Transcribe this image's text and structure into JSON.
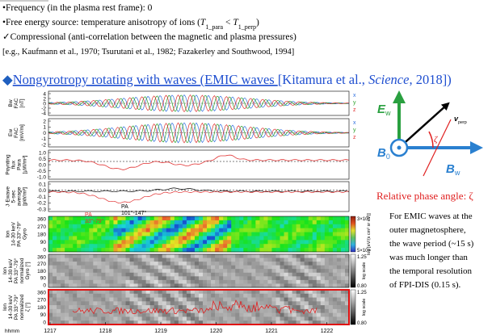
{
  "bullets": [
    {
      "parts": [
        "•Frequency (in the plasma rest frame): 0"
      ]
    },
    {
      "parts": [
        "•Free energy source: temperature anisotropy of ions (",
        "T",
        "1_para",
        " < ",
        "T",
        "1_perp",
        ")"
      ]
    },
    {
      "parts": [
        "✓Compressional (anti-correlation between the magnetic and plasma pressures)"
      ]
    }
  ],
  "reference": "[e.g., Kaufmann et al., 1970; Tsurutani et al., 1982; Fazakerley and Southwood, 1994]",
  "heading": {
    "marker": "◆",
    "text": "Nongyrotropy rotating with waves (EMIC waves ",
    "citation_pre": "[Kitamura et al., ",
    "journal": "Science",
    "citation_post": ", 2018])"
  },
  "figure": {
    "panels": [
      {
        "label": [
          "Bw",
          "FAC",
          "[nT]"
        ],
        "ticks": [
          "4",
          "2",
          "0",
          "-2",
          "-4"
        ]
      },
      {
        "label": [
          "Ew",
          "FAC",
          "[mV/m]"
        ],
        "ticks": [
          "2",
          "1",
          "0",
          "-1",
          "-2"
        ]
      },
      {
        "label": [
          "Poynting",
          "flux",
          "Para",
          "[µW/m²]"
        ],
        "ticks": [
          "1.0",
          "0.5",
          "0.0",
          "-0.5",
          "-1.0"
        ]
      },
      {
        "label": [
          "J·Ewave",
          "5-sec",
          "average",
          "[pW/m³]"
        ],
        "ticks": [
          "0.1",
          "0.0",
          "-0.1",
          "-0.2",
          "-0.3"
        ]
      },
      {
        "label": [
          "Ion",
          "14-30 keV",
          "PA 33°-79°",
          "Gyro"
        ],
        "ticks": [
          "360",
          "270",
          "180",
          "90",
          "0"
        ]
      },
      {
        "label": [
          "Ion",
          "14-30 keV",
          "PA 33°-79°",
          "normalized",
          "Gyro [°]"
        ],
        "ticks": [
          "360",
          "270",
          "180",
          "90",
          "0"
        ]
      },
      {
        "label": [
          "Ion",
          "14-30 keV",
          "PA 33°-79°",
          "normalized",
          "ζ [°]"
        ],
        "ticks": [
          "360",
          "270",
          "180",
          "90",
          "0"
        ]
      }
    ],
    "legend": [
      "x",
      "y",
      "z"
    ],
    "pa_labels": [
      [
        "PA",
        "33°-79°"
      ],
      [
        "PA",
        "101°-147°"
      ]
    ],
    "colorbars": [
      {
        "top": "3×10⁶",
        "bottom": "5×10⁵",
        "label": "log [eV/(s cm² sr eV)]"
      },
      {
        "top": "1.25",
        "bottom": "0.80",
        "label": "log scale"
      },
      {
        "top": "1.25",
        "bottom": "0.80",
        "label": "log scale"
      }
    ],
    "x_axis": {
      "label": "hhmm",
      "ticks": [
        "1217",
        "1218",
        "1219",
        "1220",
        "1221",
        "1222"
      ]
    }
  },
  "diagram": {
    "e": "E",
    "e_sub": "w",
    "b": "B",
    "b_sub": "w",
    "b0": "B",
    "b0_sub": "0",
    "v": "v",
    "v_sub": "perp",
    "zeta": "ζ",
    "caption": "Relative phase angle: ζ"
  },
  "note": [
    "For EMIC waves at the",
    "outer magnetosphere,",
    "the wave period (~15 s)",
    "was much longer than",
    "the  temporal resolution",
    "of FPI-DIS (0.15 s)."
  ]
}
